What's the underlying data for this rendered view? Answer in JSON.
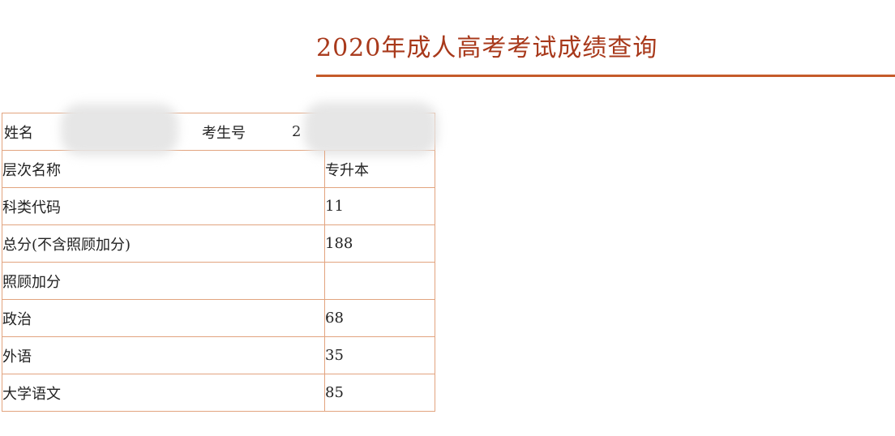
{
  "header": {
    "title": "2020年成人高考考试成绩查询"
  },
  "table": {
    "top": {
      "name_label": "姓名",
      "exam_no_label": "考生号",
      "exam_no_prefix": "2"
    },
    "rows": [
      [
        "层次名称",
        "专升本"
      ],
      [
        "科类代码",
        "11"
      ],
      [
        "总分(不含照顾加分)",
        "188"
      ],
      [
        "照顾加分",
        null
      ],
      [
        "政治",
        "68"
      ],
      [
        "外语",
        "35"
      ],
      [
        "大学语文",
        "85"
      ]
    ]
  }
}
